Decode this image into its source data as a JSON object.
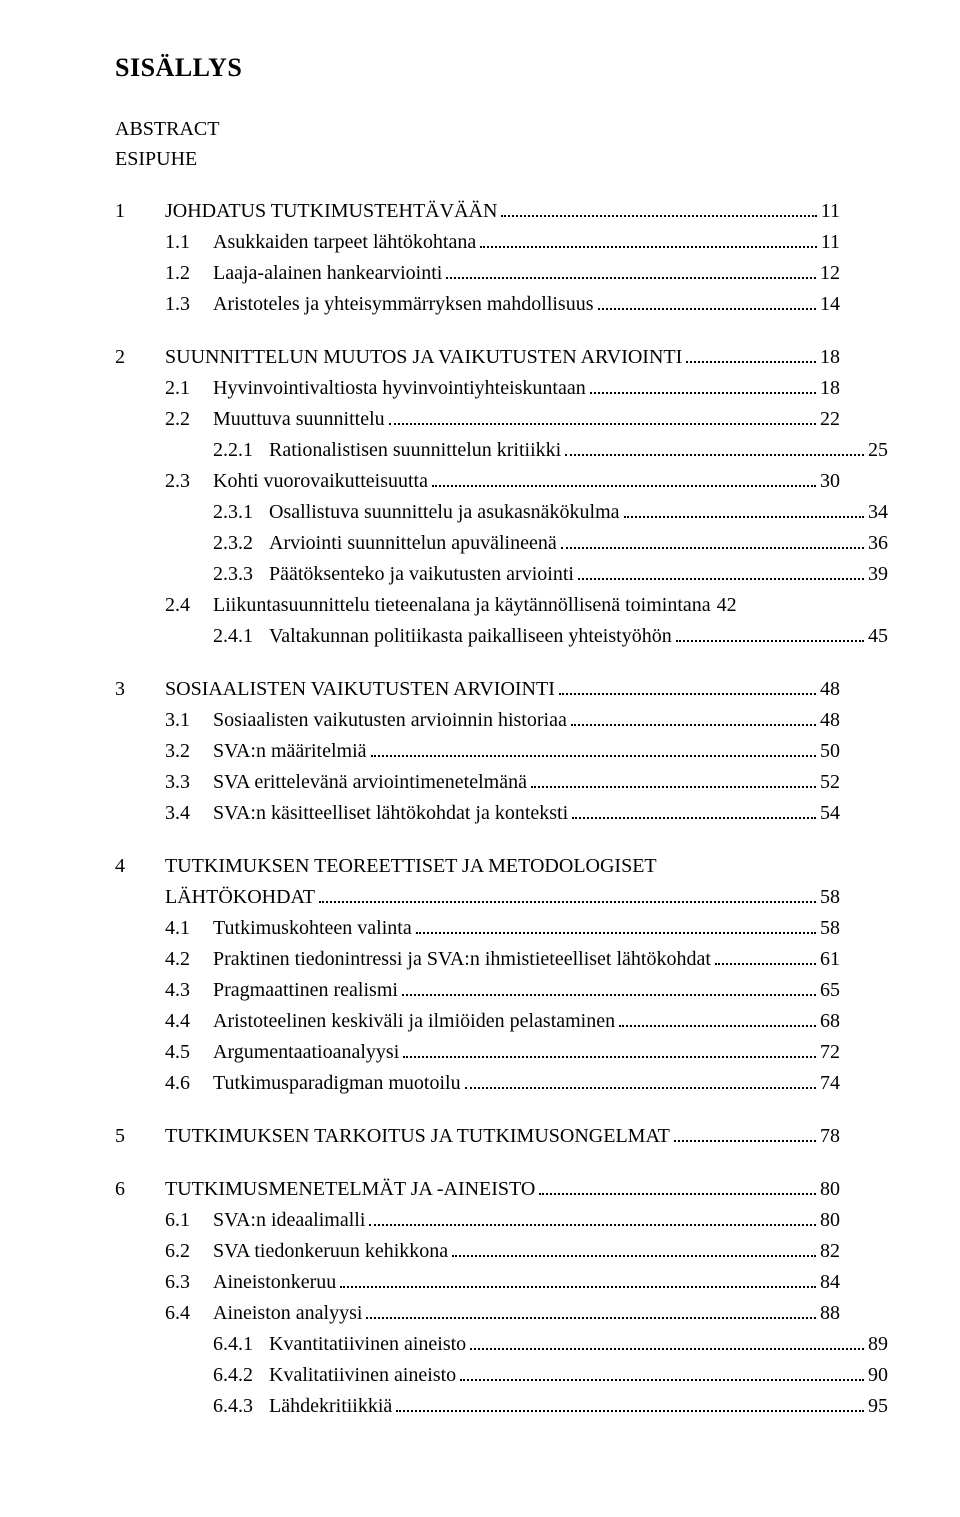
{
  "title": "SISÄLLYS",
  "front": [
    "ABSTRACT",
    "ESIPUHE"
  ],
  "chapters": [
    {
      "num": "1",
      "title": "JOHDATUS TUTKIMUSTEHTÄVÄÄN",
      "page": "11",
      "items": [
        {
          "n": "1.1",
          "t": "Asukkaiden tarpeet lähtökohtana",
          "p": "11"
        },
        {
          "n": "1.2",
          "t": "Laaja-alainen hankearviointi",
          "p": "12"
        },
        {
          "n": "1.3",
          "t": "Aristoteles ja yhteisymmärryksen mahdollisuus",
          "p": "14"
        }
      ]
    },
    {
      "num": "2",
      "title": "SUUNNITTELUN MUUTOS JA VAIKUTUSTEN ARVIOINTI",
      "page": "18",
      "items": [
        {
          "n": "2.1",
          "t": "Hyvinvointivaltiosta hyvinvointiyhteiskuntaan",
          "p": "18"
        },
        {
          "n": "2.2",
          "t": "Muuttuva suunnittelu",
          "p": "22",
          "sub": [
            {
              "n": "2.2.1",
              "t": "Rationalistisen suunnittelun kritiikki",
              "p": "25"
            }
          ]
        },
        {
          "n": "2.3",
          "t": "Kohti vuorovaikutteisuutta",
          "p": "30",
          "sub": [
            {
              "n": "2.3.1",
              "t": "Osallistuva suunnittelu ja asukasnäkökulma",
              "p": "34"
            },
            {
              "n": "2.3.2",
              "t": "Arviointi suunnittelun apuvälineenä",
              "p": "36"
            },
            {
              "n": "2.3.3",
              "t": "Päätöksenteko ja vaikutusten arviointi",
              "p": "39"
            }
          ]
        },
        {
          "n": "2.4",
          "t": "Liikuntasuunnittelu tieteenalana ja käytännöllisenä toimintana",
          "p": "42",
          "nodots": true,
          "sub": [
            {
              "n": "2.4.1",
              "t": "Valtakunnan politiikasta paikalliseen yhteistyöhön",
              "p": "45"
            }
          ]
        }
      ]
    },
    {
      "num": "3",
      "title": "SOSIAALISTEN VAIKUTUSTEN ARVIOINTI",
      "page": "48",
      "items": [
        {
          "n": "3.1",
          "t": "Sosiaalisten vaikutusten arvioinnin historiaa",
          "p": "48"
        },
        {
          "n": "3.2",
          "t": "SVA:n määritelmiä",
          "p": "50"
        },
        {
          "n": "3.3",
          "t": "SVA erittelevänä arviointimenetelmänä",
          "p": "52"
        },
        {
          "n": "3.4",
          "t": "SVA:n käsitteelliset lähtökohdat ja konteksti",
          "p": "54"
        }
      ]
    },
    {
      "num": "4",
      "title_lines": [
        "TUTKIMUKSEN TEOREETTISET JA METODOLOGISET",
        "LÄHTÖKOHDAT"
      ],
      "page": "58",
      "items": [
        {
          "n": "4.1",
          "t": "Tutkimuskohteen valinta",
          "p": "58"
        },
        {
          "n": "4.2",
          "t": "Praktinen tiedonintressi ja SVA:n ihmistieteelliset lähtökohdat",
          "p": "61"
        },
        {
          "n": "4.3",
          "t": "Pragmaattinen realismi",
          "p": "65"
        },
        {
          "n": "4.4",
          "t": "Aristoteelinen keskiväli ja ilmiöiden pelastaminen",
          "p": "68"
        },
        {
          "n": "4.5",
          "t": "Argumentaatioanalyysi",
          "p": "72"
        },
        {
          "n": "4.6",
          "t": "Tutkimusparadigman muotoilu",
          "p": "74"
        }
      ]
    },
    {
      "num": "5",
      "title": "TUTKIMUKSEN TARKOITUS JA TUTKIMUSONGELMAT",
      "page": "78",
      "items": []
    },
    {
      "num": "6",
      "title": "TUTKIMUSMENETELMÄT JA -AINEISTO",
      "page": "80",
      "items": [
        {
          "n": "6.1",
          "t": "SVA:n ideaalimalli",
          "p": "80"
        },
        {
          "n": "6.2",
          "t": "SVA tiedonkeruun kehikkona",
          "p": "82"
        },
        {
          "n": "6.3",
          "t": "Aineistonkeruu",
          "p": "84"
        },
        {
          "n": "6.4",
          "t": "Aineiston analyysi",
          "p": "88",
          "sub": [
            {
              "n": "6.4.1",
              "t": "Kvantitatiivinen aineisto",
              "p": "89"
            },
            {
              "n": "6.4.2",
              "t": "Kvalitatiivinen aineisto",
              "p": "90"
            },
            {
              "n": "6.4.3",
              "t": "Lähdekritiikkiä",
              "p": "95"
            }
          ]
        }
      ]
    }
  ]
}
